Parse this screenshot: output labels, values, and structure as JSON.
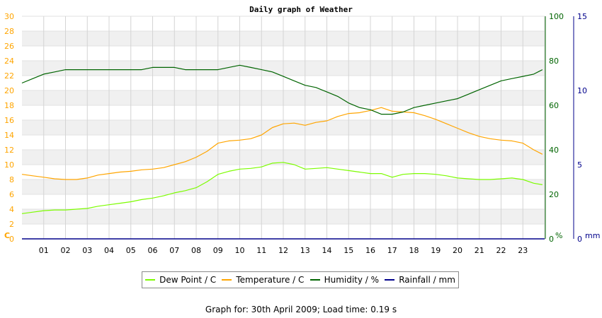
{
  "chart_data": {
    "type": "line",
    "title": "Daily graph of Weather",
    "x_labels": [
      "01",
      "02",
      "03",
      "04",
      "05",
      "06",
      "07",
      "08",
      "09",
      "10",
      "11",
      "12",
      "13",
      "14",
      "15",
      "16",
      "17",
      "18",
      "19",
      "20",
      "21",
      "22",
      "23"
    ],
    "xlim": [
      0,
      24
    ],
    "axes": {
      "left": {
        "unit_label": "C",
        "ylim": [
          0,
          30
        ],
        "ticks": [
          0,
          2,
          4,
          6,
          8,
          10,
          12,
          14,
          16,
          18,
          20,
          22,
          24,
          26,
          28,
          30
        ],
        "color": "#ffa500"
      },
      "right1": {
        "unit_label": "%",
        "ylim": [
          0,
          100
        ],
        "ticks": [
          0,
          20,
          40,
          60,
          80,
          100
        ],
        "color": "#006400"
      },
      "right2": {
        "unit_label": "mm",
        "ylim": [
          0,
          15
        ],
        "ticks": [
          0,
          5,
          10,
          15
        ],
        "color": "#00008b"
      }
    },
    "grid": true,
    "legend_position": "bottom",
    "series": [
      {
        "name": "Dew Point / C",
        "axis": "left",
        "color": "#7cfc00",
        "x": [
          0,
          0.5,
          1,
          1.5,
          2,
          2.5,
          3,
          3.5,
          4,
          4.5,
          5,
          5.5,
          6,
          6.5,
          7,
          7.5,
          8,
          8.5,
          9,
          9.5,
          10,
          10.5,
          11,
          11.5,
          12,
          12.5,
          13,
          13.5,
          14,
          14.5,
          15,
          15.5,
          16,
          16.5,
          17,
          17.5,
          18,
          18.5,
          19,
          19.5,
          20,
          20.5,
          21,
          21.5,
          22,
          22.5,
          23,
          23.5,
          23.9
        ],
        "y": [
          3.4,
          3.6,
          3.8,
          3.9,
          3.9,
          4.0,
          4.1,
          4.4,
          4.6,
          4.8,
          5.0,
          5.3,
          5.5,
          5.8,
          6.2,
          6.5,
          6.9,
          7.7,
          8.7,
          9.1,
          9.4,
          9.5,
          9.7,
          10.2,
          10.3,
          10.0,
          9.4,
          9.5,
          9.6,
          9.4,
          9.2,
          9.0,
          8.8,
          8.8,
          8.3,
          8.7,
          8.8,
          8.8,
          8.7,
          8.5,
          8.2,
          8.1,
          8.0,
          8.0,
          8.1,
          8.2,
          8.0,
          7.5,
          7.3
        ]
      },
      {
        "name": "Temperature / C",
        "axis": "left",
        "color": "#ffa500",
        "x": [
          0,
          0.5,
          1,
          1.5,
          2,
          2.5,
          3,
          3.5,
          4,
          4.5,
          5,
          5.5,
          6,
          6.5,
          7,
          7.5,
          8,
          8.5,
          9,
          9.5,
          10,
          10.5,
          11,
          11.5,
          12,
          12.5,
          13,
          13.5,
          14,
          14.5,
          15,
          15.5,
          16,
          16.5,
          17,
          17.5,
          18,
          18.5,
          19,
          19.5,
          20,
          20.5,
          21,
          21.5,
          22,
          22.5,
          23,
          23.5,
          23.9
        ],
        "y": [
          8.7,
          8.5,
          8.3,
          8.1,
          8.0,
          8.0,
          8.2,
          8.6,
          8.8,
          9.0,
          9.1,
          9.3,
          9.4,
          9.6,
          10.0,
          10.4,
          11.0,
          11.8,
          12.9,
          13.2,
          13.3,
          13.5,
          14.0,
          15.0,
          15.5,
          15.6,
          15.3,
          15.7,
          15.9,
          16.5,
          16.9,
          17.0,
          17.3,
          17.7,
          17.2,
          17.1,
          17.0,
          16.6,
          16.1,
          15.5,
          14.9,
          14.3,
          13.8,
          13.5,
          13.3,
          13.2,
          12.9,
          12.0,
          11.4
        ]
      },
      {
        "name": "Humidity / %",
        "axis": "right1",
        "color": "#006400",
        "x": [
          0,
          0.5,
          1,
          1.5,
          2,
          2.5,
          3,
          3.5,
          4,
          4.5,
          5,
          5.5,
          6,
          6.5,
          7,
          7.5,
          8,
          8.5,
          9,
          9.5,
          10,
          10.5,
          11,
          11.5,
          12,
          12.5,
          13,
          13.5,
          14,
          14.5,
          15,
          15.5,
          16,
          16.5,
          17,
          17.5,
          18,
          18.5,
          19,
          19.5,
          20,
          20.5,
          21,
          21.5,
          22,
          22.5,
          23,
          23.5,
          23.9
        ],
        "y": [
          70,
          72,
          74,
          75,
          76,
          76,
          76,
          76,
          76,
          76,
          76,
          76,
          77,
          77,
          77,
          76,
          76,
          76,
          76,
          77,
          78,
          77,
          76,
          75,
          73,
          71,
          69,
          68,
          66,
          64,
          61,
          59,
          58,
          56,
          56,
          57,
          59,
          60,
          61,
          62,
          63,
          65,
          67,
          69,
          71,
          72,
          73,
          74,
          76
        ]
      },
      {
        "name": "Rainfall / mm",
        "axis": "right2",
        "color": "#00008b",
        "x": [
          0,
          24
        ],
        "y": [
          0,
          0
        ]
      }
    ]
  },
  "footer": {
    "text": "Graph for:  30th April 2009; Load time: 0.19 s"
  }
}
